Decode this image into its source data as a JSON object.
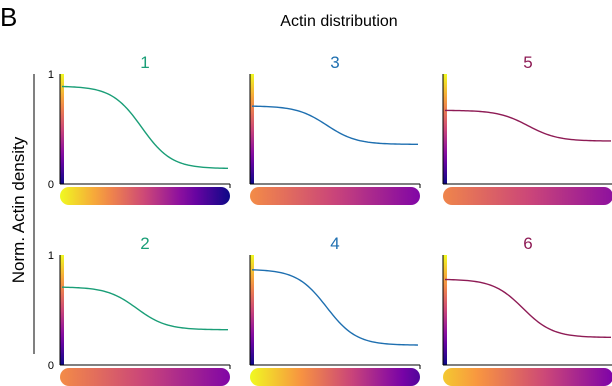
{
  "panel_letter": "B",
  "colors": {
    "green": "#1a9e77",
    "blue": "#1e6fb0",
    "crimson": "#8e1b55",
    "axis": "#000000"
  },
  "chart_data": {
    "type": "line",
    "title": "Actin distribution",
    "ylabel": "Norm. Actin density",
    "ylim": [
      0,
      1
    ],
    "y_ticks": [
      "0",
      "1"
    ],
    "grid": false,
    "colormap": "plasma",
    "panels": [
      {
        "label": "1",
        "color": "green",
        "start": 0.89,
        "end": 0.14,
        "midpoint": 0.48,
        "bar_range": [
          1.0,
          0.0
        ]
      },
      {
        "label": "3",
        "color": "blue",
        "start": 0.71,
        "end": 0.36,
        "midpoint": 0.45,
        "bar_range": [
          0.72,
          0.26
        ]
      },
      {
        "label": "5",
        "color": "crimson",
        "start": 0.67,
        "end": 0.39,
        "midpoint": 0.5,
        "bar_range": [
          0.7,
          0.3
        ]
      },
      {
        "label": "2",
        "color": "green",
        "start": 0.71,
        "end": 0.32,
        "midpoint": 0.45,
        "bar_range": [
          0.72,
          0.26
        ]
      },
      {
        "label": "4",
        "color": "blue",
        "start": 0.87,
        "end": 0.18,
        "midpoint": 0.45,
        "bar_range": [
          1.0,
          0.15
        ]
      },
      {
        "label": "6",
        "color": "crimson",
        "start": 0.78,
        "end": 0.25,
        "midpoint": 0.47,
        "bar_range": [
          0.88,
          0.25
        ]
      }
    ]
  }
}
